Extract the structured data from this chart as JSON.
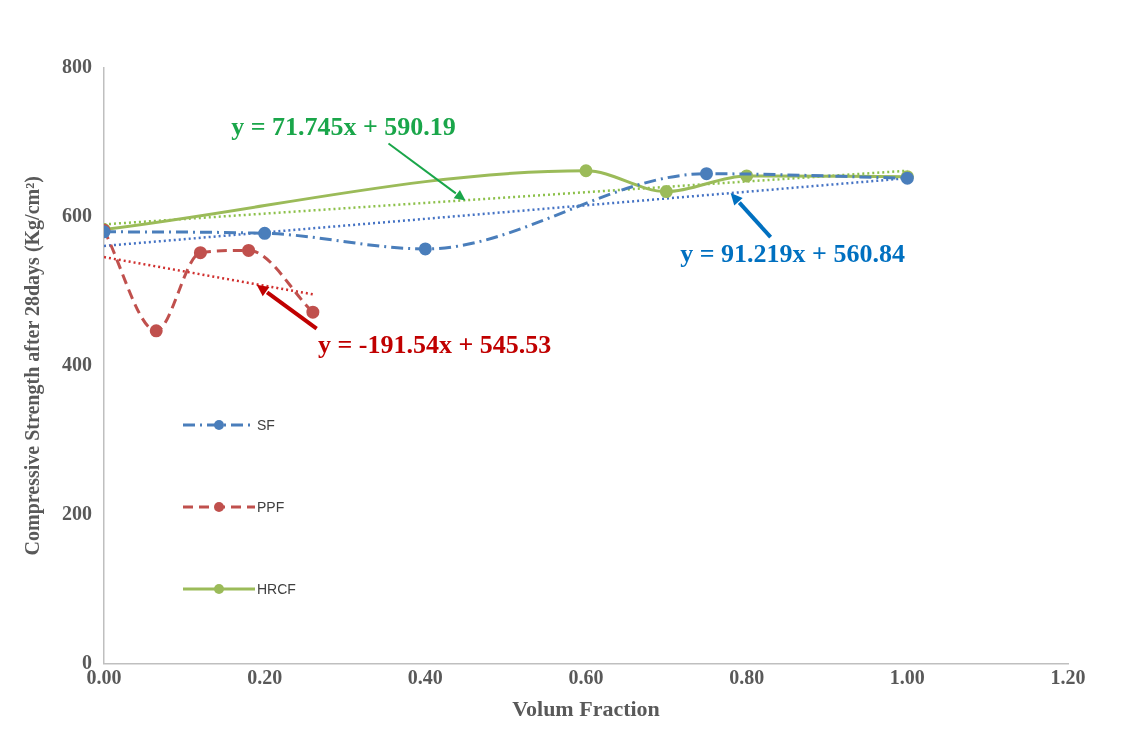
{
  "chart_data": {
    "type": "line",
    "xlabel": "Volum Fraction",
    "ylabel": "Compressive Strength after 28days (Kg/cm²)",
    "xlim": [
      0,
      1.2
    ],
    "xticks": [
      {
        "value": 0,
        "label": "0.00"
      },
      {
        "value": 0.2,
        "label": "0.20"
      },
      {
        "value": 0.4,
        "label": "0.40"
      },
      {
        "value": 0.6,
        "label": "0.60"
      },
      {
        "value": 0.8,
        "label": "0.80"
      },
      {
        "value": 1,
        "label": "1.00"
      },
      {
        "value": 1.2,
        "label": "1.20"
      }
    ],
    "ylim": [
      0,
      800
    ],
    "yticks": [
      0,
      200,
      400,
      600,
      800
    ],
    "grid": false,
    "legend": "left",
    "marker": "circle",
    "series": [
      {
        "name": "SF",
        "color": "#4a7ebb",
        "line_style": "dashdot",
        "x": [
          0,
          0.2,
          0.4,
          0.75,
          1.0
        ],
        "values": [
          580,
          578,
          557,
          658,
          652
        ]
      },
      {
        "name": "PPF",
        "color": "#c0504d",
        "line_style": "dashed",
        "x": [
          0,
          0.065,
          0.12,
          0.18,
          0.26
        ],
        "values": [
          582,
          447,
          552,
          555,
          472
        ]
      },
      {
        "name": "HRCF",
        "color": "#9bbb59",
        "line_style": "solid",
        "x": [
          0,
          0.6,
          0.7,
          0.8,
          1.0
        ],
        "values": [
          583,
          662,
          634,
          655,
          654
        ]
      },
      {
        "color": "#4472c4",
        "line_style": "dotted",
        "marker": "none",
        "x": [
          0,
          1.0
        ],
        "values": [
          561,
          652
        ]
      },
      {
        "color": "#d0302f",
        "line_style": "dotted",
        "marker": "none",
        "x": [
          0,
          0.26
        ],
        "values": [
          546,
          496
        ]
      },
      {
        "color": "#8cc04a",
        "line_style": "dotted",
        "marker": "none",
        "x": [
          0,
          1.0
        ],
        "values": [
          590,
          662
        ]
      }
    ],
    "annotations": [
      {
        "text": "y = 91.219x + 560.84",
        "x": 0.78,
        "y": 632
      },
      {
        "text": "y = -191.54x + 545.53",
        "x": 0.19,
        "y": 509
      },
      {
        "text": "y = 71.745x + 590.19",
        "x": 0.45,
        "y": 622
      }
    ]
  }
}
